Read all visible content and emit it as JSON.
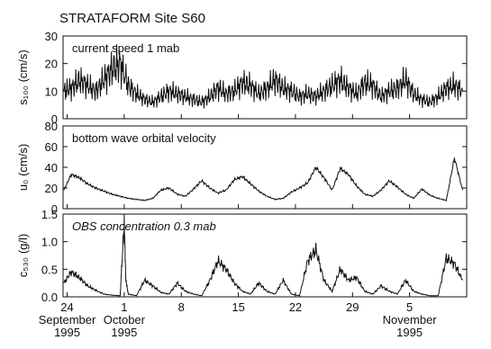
{
  "figure_title": "STRATAFORM Site S60",
  "chart_data": [
    {
      "type": "line",
      "annotation": "current speed 1 mab",
      "ylabel": "s₁₀₀ (cm/s)",
      "ylim": [
        0,
        30
      ],
      "yticks": [
        0,
        10,
        20,
        30
      ],
      "color": "#111111",
      "series": [
        {
          "x": [
            23.6,
            24.5,
            25.5,
            26.5,
            27.5,
            28.5,
            29.5,
            30.5,
            31.5,
            32.5,
            33.5,
            34.5,
            35.5,
            36.5,
            37.5,
            38.5,
            39.5,
            40.5,
            41.5,
            42.5,
            43.5,
            44.5,
            45.5,
            46.5,
            47.5,
            48.5,
            49.5,
            50.5,
            51.5,
            52.5,
            53.5,
            54.5,
            55.5,
            56.5,
            57.5,
            58.5,
            59.5,
            60.5,
            61.5,
            62.5,
            63.5,
            64.5,
            65.5,
            66.5,
            67.5,
            68.5,
            69.5,
            70.5,
            71.5,
            72.5
          ],
          "y": [
            10,
            11,
            14,
            12,
            10,
            14,
            18,
            20,
            12,
            9,
            7,
            6,
            8,
            10,
            9,
            8,
            7,
            6,
            8,
            11,
            9,
            10,
            13,
            12,
            9,
            11,
            14,
            11,
            10,
            8,
            9,
            8,
            10,
            12,
            14,
            11,
            9,
            13,
            12,
            8,
            10,
            11,
            14,
            9,
            7,
            6,
            8,
            11,
            12,
            10
          ]
        }
      ]
    },
    {
      "type": "line",
      "annotation": "bottom wave orbital velocity",
      "ylabel": "u₀ (cm/s)",
      "ylim": [
        0,
        80
      ],
      "yticks": [
        0,
        20,
        40,
        60,
        80
      ],
      "color": "#111111",
      "series": [
        {
          "x": [
            23.6,
            24.5,
            25.5,
            26.5,
            27.5,
            28.5,
            29.5,
            30.5,
            31.5,
            32.5,
            33.5,
            34.5,
            35.5,
            36.5,
            37.5,
            38.5,
            39.5,
            40.5,
            41.5,
            42.5,
            43.5,
            44.5,
            45.5,
            46.5,
            47.5,
            48.5,
            49.5,
            50.5,
            51.5,
            52.5,
            53.5,
            54.5,
            55.5,
            56.5,
            57.5,
            58.5,
            59.5,
            60.5,
            61.5,
            62.5,
            63.5,
            64.5,
            65.5,
            66.5,
            67.5,
            68.5,
            69.5,
            70.5,
            71.5,
            72.5
          ],
          "y": [
            18,
            33,
            30,
            24,
            20,
            17,
            14,
            12,
            10,
            9,
            8,
            10,
            18,
            20,
            14,
            12,
            19,
            27,
            20,
            15,
            18,
            28,
            31,
            24,
            17,
            12,
            9,
            10,
            16,
            20,
            25,
            40,
            30,
            18,
            39,
            33,
            22,
            14,
            12,
            18,
            27,
            21,
            14,
            10,
            19,
            13,
            10,
            8,
            49,
            18
          ]
        }
      ]
    },
    {
      "type": "line",
      "annotation": "OBS concentration 0.3 mab",
      "ylabel": "c₅₃₀ (g/l)",
      "ylim": [
        0,
        1.5
      ],
      "yticks": [
        0.0,
        0.5,
        1.0,
        1.5
      ],
      "color": "#111111",
      "series": [
        {
          "x": [
            23.6,
            24.5,
            25.5,
            26.5,
            27.5,
            28.5,
            29.5,
            30.5,
            31.0,
            31.2,
            31.5,
            32.5,
            33.5,
            34.5,
            35.5,
            36.5,
            37.5,
            38.5,
            39.5,
            40.5,
            41.5,
            42.5,
            43.5,
            44.5,
            45.5,
            46.5,
            47.5,
            48.5,
            49.5,
            50.5,
            51.5,
            52.5,
            53.5,
            54.5,
            55.5,
            56.5,
            57.5,
            58.5,
            59.5,
            60.5,
            61.5,
            62.5,
            63.5,
            64.5,
            65.5,
            66.5,
            67.5,
            68.5,
            69.5,
            70.5,
            71.5,
            72.5
          ],
          "y": [
            0.25,
            0.45,
            0.35,
            0.2,
            0.12,
            0.05,
            0.03,
            0.02,
            1.35,
            0.3,
            0.05,
            0.02,
            0.3,
            0.2,
            0.08,
            0.05,
            0.25,
            0.1,
            0.05,
            0.02,
            0.3,
            0.65,
            0.5,
            0.25,
            0.1,
            0.05,
            0.25,
            0.1,
            0.05,
            0.3,
            0.05,
            0.02,
            0.65,
            0.85,
            0.3,
            0.1,
            0.5,
            0.3,
            0.35,
            0.1,
            0.05,
            0.2,
            0.1,
            0.05,
            0.3,
            0.1,
            0.05,
            0.02,
            0.02,
            0.7,
            0.6,
            0.3
          ]
        }
      ]
    }
  ],
  "x_axis": {
    "range": [
      23.5,
      73
    ],
    "ticks": [
      {
        "value": 24,
        "day": "24",
        "month": "September",
        "year": "1995"
      },
      {
        "value": 31,
        "day": "1",
        "month": "October",
        "year": "1995"
      },
      {
        "value": 38,
        "day": "8",
        "month": "",
        "year": ""
      },
      {
        "value": 45,
        "day": "15",
        "month": "",
        "year": ""
      },
      {
        "value": 52,
        "day": "22",
        "month": "",
        "year": ""
      },
      {
        "value": 59,
        "day": "29",
        "month": "",
        "year": ""
      },
      {
        "value": 66,
        "day": "5",
        "month": "November",
        "year": "1995"
      }
    ]
  }
}
